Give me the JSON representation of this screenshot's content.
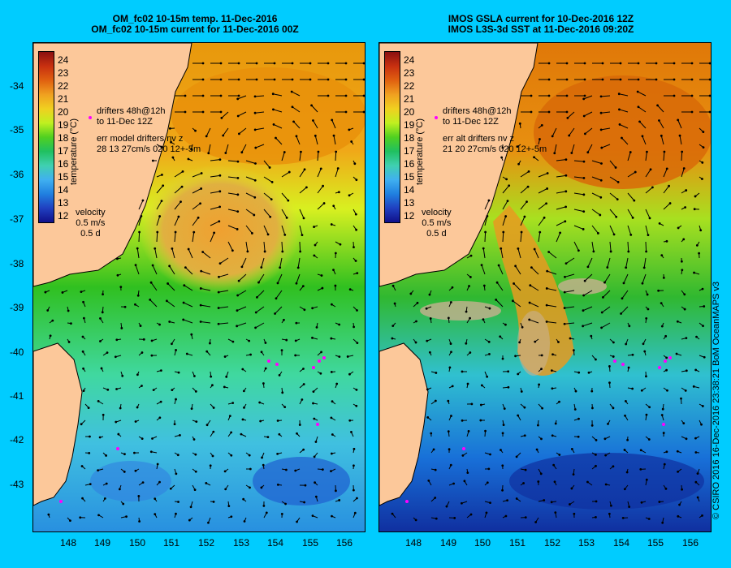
{
  "left_panel": {
    "title_line1": "OM_fc02 10-15m temp. 11-Dec-2016",
    "title_line2": "OM_fc02 10-15m current for 11-Dec-2016 00Z",
    "drifters_line1": "drifters 48h@12h",
    "drifters_line2": "to 11-Dec 12Z",
    "err_line1": "err model drifters nv z",
    "err_line2": "28 13 27cm/s 020 12+-5m",
    "velocity_label": "velocity",
    "velocity_scale": "0.5 m/s",
    "velocity_time": "0.5 d"
  },
  "right_panel": {
    "title_line1": "IMOS GSLA current for 10-Dec-2016 12Z",
    "title_line2": "IMOS L3S-3d SST at 11-Dec-2016 09:20Z",
    "drifters_line1": "drifters 48h@12h",
    "drifters_line2": "to 11-Dec 12Z",
    "err_line1": "err alt drifters nv z",
    "err_line2": "21 20 27cm/s 020 12+-5m",
    "velocity_label": "velocity",
    "velocity_scale": "0.5 m/s",
    "velocity_time": "0.5 d"
  },
  "colorbar": {
    "title": "temperature (°C)",
    "ticks": [
      "24",
      "23",
      "22",
      "21",
      "20",
      "19",
      "18",
      "17",
      "16",
      "15",
      "14",
      "13",
      "12"
    ]
  },
  "y_axis": [
    "-34",
    "-35",
    "-36",
    "-37",
    "-38",
    "-39",
    "-40",
    "-41",
    "-42",
    "-43"
  ],
  "x_axis": [
    "148",
    "149",
    "150",
    "151",
    "152",
    "153",
    "154",
    "155",
    "156"
  ],
  "credit": "© CSIRO 2016   16-Dec-2016 23:38:21 BoM OceanMAPS v3",
  "colors": {
    "land": "#fcc89a",
    "background": "#00ccff",
    "drifter": "#ff00ff"
  }
}
